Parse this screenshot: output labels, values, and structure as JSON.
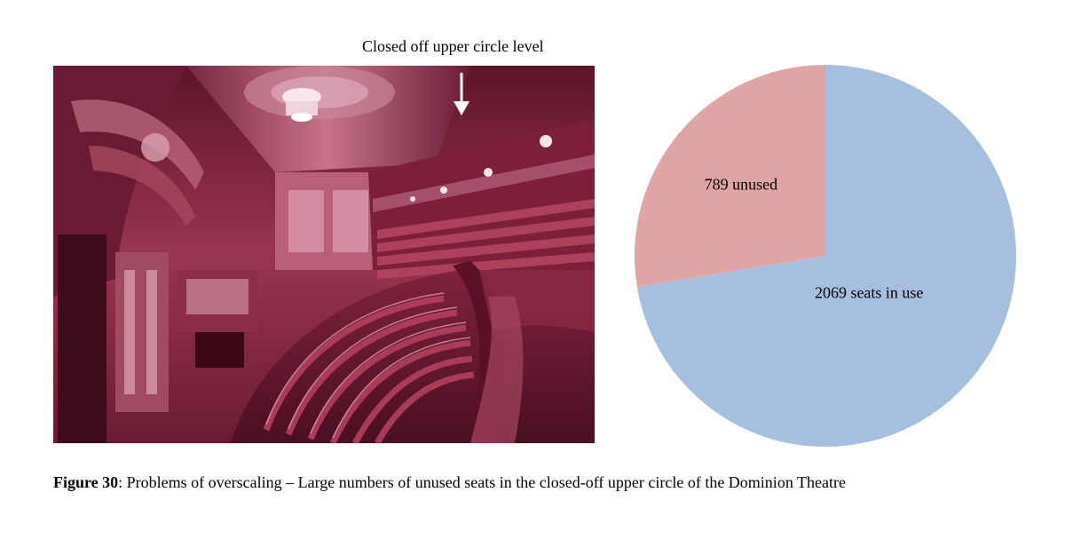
{
  "photo": {
    "annotation": "Closed off upper circle level",
    "colors": {
      "tint": "#8a2d4a",
      "ceiling": "#b5566f",
      "seats": "#7a1f3a",
      "highlight": "#f3d6e0"
    }
  },
  "chart_data": {
    "type": "pie",
    "title": "",
    "slices": [
      {
        "label": "2069 seats in use",
        "value": 2069,
        "color": "#a7bfdf"
      },
      {
        "label": "789 unused",
        "value": 789,
        "color": "#dfa5a4"
      }
    ],
    "legend": "none"
  },
  "caption": {
    "label": "Figure 30",
    "text": ": Problems of overscaling – Large numbers of unused seats in the closed-off upper circle of the Dominion Theatre"
  }
}
